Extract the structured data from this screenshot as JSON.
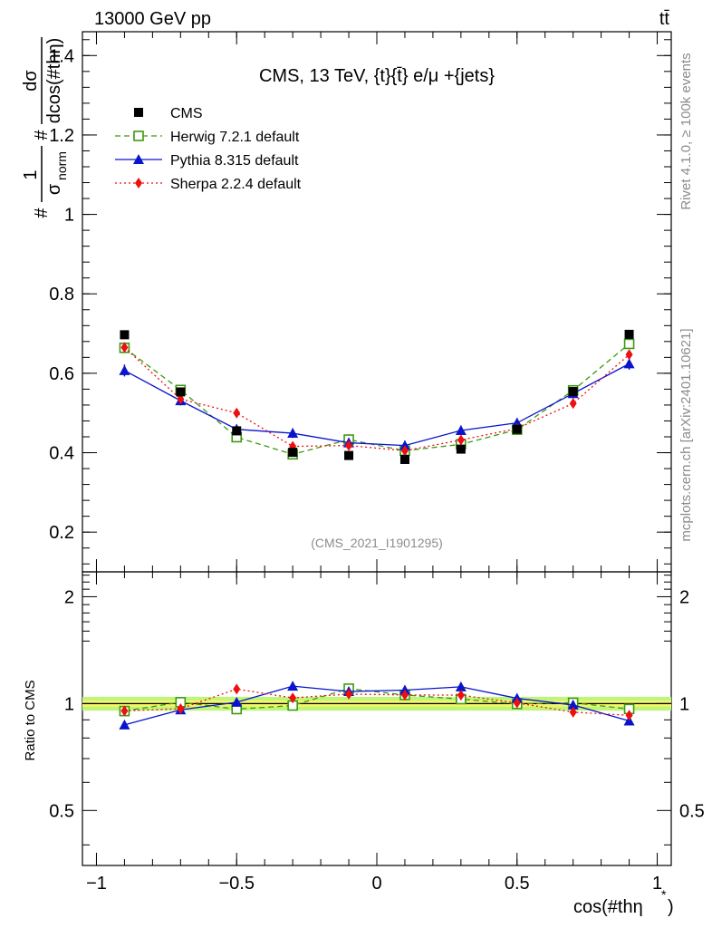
{
  "chart_data": {
    "type": "line",
    "header_left": "13000 GeV pp",
    "header_right": "tt̄",
    "title": "CMS, 13 TeV, {t}{t̄} e/μ +{jets}",
    "watermark": "(CMS_2021_I1901295)",
    "side_text_top": "Rivet 4.1.0, ≥ 100k events",
    "side_text_bottom": "mcplots.cern.ch [arXiv:2401.10621]",
    "ylabel_top": "#1/σnorm #dσ/dcos(#thη)",
    "ylabel_top_parts": {
      "hash1": "#",
      "one": "1",
      "sigma": "σ",
      "norm": "norm",
      "hash2": "#",
      "dsigma": "dσ",
      "dcos": "dcos(#thη)"
    },
    "ylabel_ratio": "Ratio to CMS",
    "xlabel": "cos(#thη*)",
    "xlabel_parts": {
      "main": "cos(#thη",
      "sup": "*",
      "close": ")"
    },
    "xlim": [
      -1.05,
      1.05
    ],
    "ylim_top": [
      0.1,
      1.46
    ],
    "ylim_ratio": [
      0.35,
      2.35
    ],
    "x_ticks": [
      -1,
      -0.5,
      0,
      0.5,
      1
    ],
    "x_tick_labels": [
      "−1",
      "−0.5",
      "0",
      "0.5",
      "1"
    ],
    "y_ticks_top": [
      0.2,
      0.4,
      0.6,
      0.8,
      1,
      1.2,
      1.4
    ],
    "y_tick_labels_top": [
      "0.2",
      "0.4",
      "0.6",
      "0.8",
      "1",
      "1.2",
      "1.4"
    ],
    "y_ticks_ratio": [
      0.5,
      1,
      2
    ],
    "y_tick_labels_ratio": [
      "0.5",
      "1",
      "2"
    ],
    "x": [
      -0.9,
      -0.7,
      -0.5,
      -0.3,
      -0.1,
      0.1,
      0.3,
      0.5,
      0.7,
      0.9
    ],
    "series": [
      {
        "name": "CMS",
        "color": "#000000",
        "marker": "square",
        "values": [
          0.697,
          0.553,
          0.455,
          0.401,
          0.393,
          0.383,
          0.409,
          0.459,
          0.554,
          0.698
        ],
        "errors": [
          0.005,
          0.005,
          0.005,
          0.005,
          0.005,
          0.005,
          0.005,
          0.005,
          0.005,
          0.005
        ]
      },
      {
        "name": "Herwig 7.2.1 default",
        "color": "#3d9912",
        "marker": "open-square",
        "dash": "6,4",
        "values": [
          0.664,
          0.558,
          0.439,
          0.396,
          0.433,
          0.405,
          0.421,
          0.458,
          0.557,
          0.674
        ],
        "errors": [
          0.012,
          0.012,
          0.01,
          0.01,
          0.012,
          0.01,
          0.01,
          0.01,
          0.012,
          0.012
        ]
      },
      {
        "name": "Pythia 8.315 default",
        "color": "#0a14cc",
        "marker": "triangle",
        "dash": "",
        "values": [
          0.607,
          0.531,
          0.459,
          0.449,
          0.425,
          0.418,
          0.456,
          0.475,
          0.549,
          0.624
        ],
        "errors": [
          0.015,
          0.012,
          0.012,
          0.012,
          0.012,
          0.012,
          0.012,
          0.012,
          0.012,
          0.015
        ]
      },
      {
        "name": "Sherpa 2.2.4 default",
        "color": "#ee0f0f",
        "marker": "diamond",
        "dash": "2,3",
        "values": [
          0.665,
          0.535,
          0.5,
          0.416,
          0.418,
          0.405,
          0.432,
          0.461,
          0.524,
          0.647
        ],
        "errors": [
          0.01,
          0.01,
          0.01,
          0.008,
          0.008,
          0.008,
          0.008,
          0.008,
          0.01,
          0.01
        ]
      }
    ],
    "ratio_band": {
      "inner": 0.02,
      "outer": 0.045,
      "inner_color": "#f5f56a",
      "outer_color": "#bff57a"
    },
    "legend_position": "top-left"
  }
}
